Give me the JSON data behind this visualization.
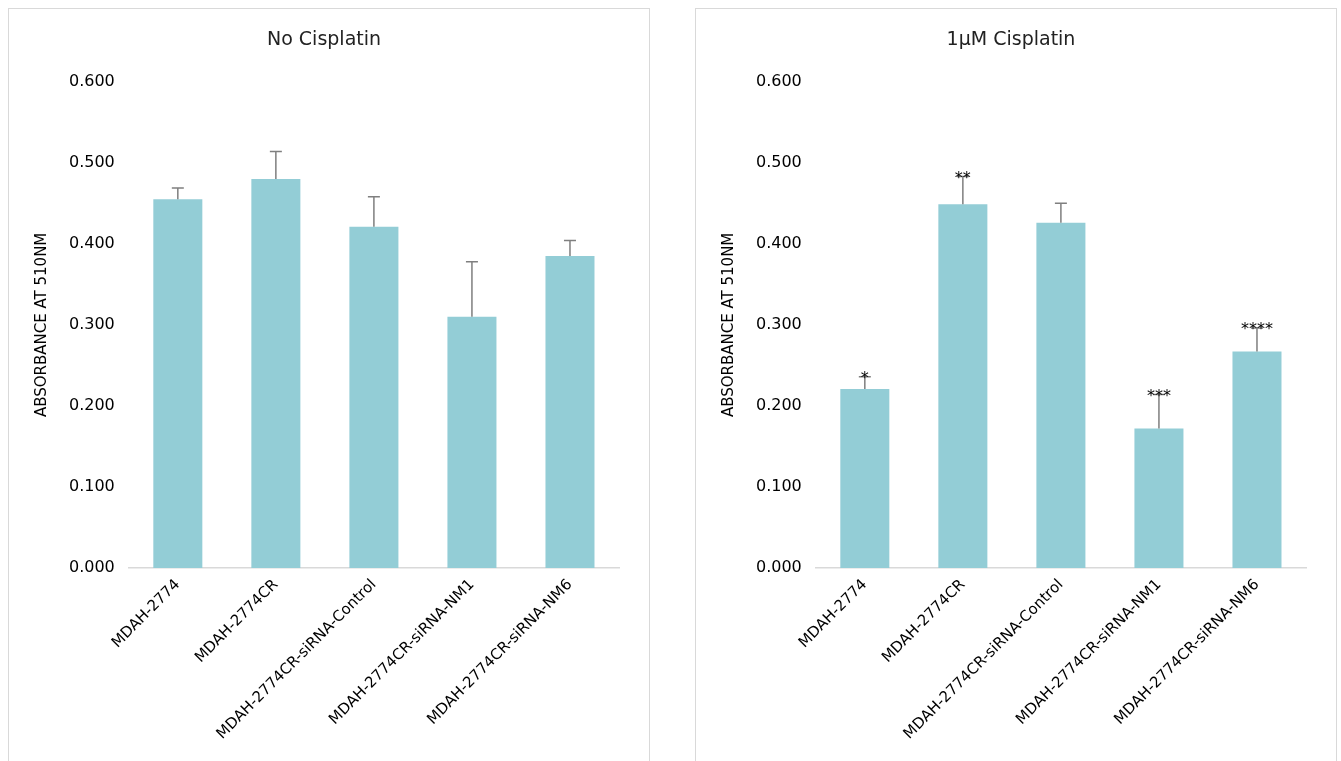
{
  "chart_data": [
    {
      "type": "bar",
      "title": "No Cisplatin",
      "ylabel": "ABSORBANCE AT 510NM",
      "categories": [
        "MDAH-2774",
        "MDAH-2774CR",
        "MDAH-2774CR-siRNA-Control",
        "MDAH-2774CR-siRNA-NM1",
        "MDAH-2774CR-siRNA-NM6"
      ],
      "values": [
        0.455,
        0.48,
        0.421,
        0.31,
        0.385
      ],
      "color": "#93cdd6",
      "errors": [
        [
          0.455,
          0.469
        ],
        [
          0.48,
          0.514
        ],
        [
          0.421,
          0.458
        ],
        [
          0.31,
          0.378
        ],
        [
          0.385,
          0.404
        ]
      ],
      "ylim": [
        0,
        0.6
      ],
      "yticks": [
        {
          "value": 0,
          "label": "0.000"
        },
        {
          "value": 0.1,
          "label": "0.100"
        },
        {
          "value": 0.2,
          "label": "0.200"
        },
        {
          "value": 0.3,
          "label": "0.300"
        },
        {
          "value": 0.4,
          "label": "0.400"
        },
        {
          "value": 0.5,
          "label": "0.500"
        },
        {
          "value": 0.6,
          "label": "0.600"
        }
      ],
      "grid": false,
      "legend": false
    },
    {
      "type": "bar",
      "title": "1µM Cisplatin",
      "ylabel": "ABSORBANCE AT 510NM",
      "categories": [
        "MDAH-2774",
        "MDAH-2774CR",
        "MDAH-2774CR-siRNA-Control",
        "MDAH-2774CR-siRNA-NM1",
        "MDAH-2774CR-siRNA-NM6"
      ],
      "values": [
        0.221,
        0.449,
        0.426,
        0.172,
        0.267
      ],
      "color": "#93cdd6",
      "errors": [
        [
          0.221,
          0.236
        ],
        [
          0.449,
          0.483
        ],
        [
          0.426,
          0.45
        ],
        [
          0.172,
          0.214
        ],
        [
          0.267,
          0.296
        ]
      ],
      "ylim": [
        0,
        0.6
      ],
      "yticks": [
        {
          "value": 0,
          "label": "0.000"
        },
        {
          "value": 0.1,
          "label": "0.100"
        },
        {
          "value": 0.2,
          "label": "0.200"
        },
        {
          "value": 0.3,
          "label": "0.300"
        },
        {
          "value": 0.4,
          "label": "0.400"
        },
        {
          "value": 0.5,
          "label": "0.500"
        },
        {
          "value": 0.6,
          "label": "0.600"
        }
      ],
      "grid": false,
      "legend": false,
      "annotations": [
        {
          "text": "*",
          "x": "MDAH-2774",
          "y": 0.236
        },
        {
          "text": "**",
          "x": "MDAH-2774CR",
          "y": 0.483
        },
        {
          "text": "***",
          "x": "MDAH-2774CR-siRNA-NM1",
          "y": 0.214
        },
        {
          "text": "****",
          "x": "MDAH-2774CR-siRNA-NM6",
          "y": 0.296
        }
      ]
    }
  ]
}
